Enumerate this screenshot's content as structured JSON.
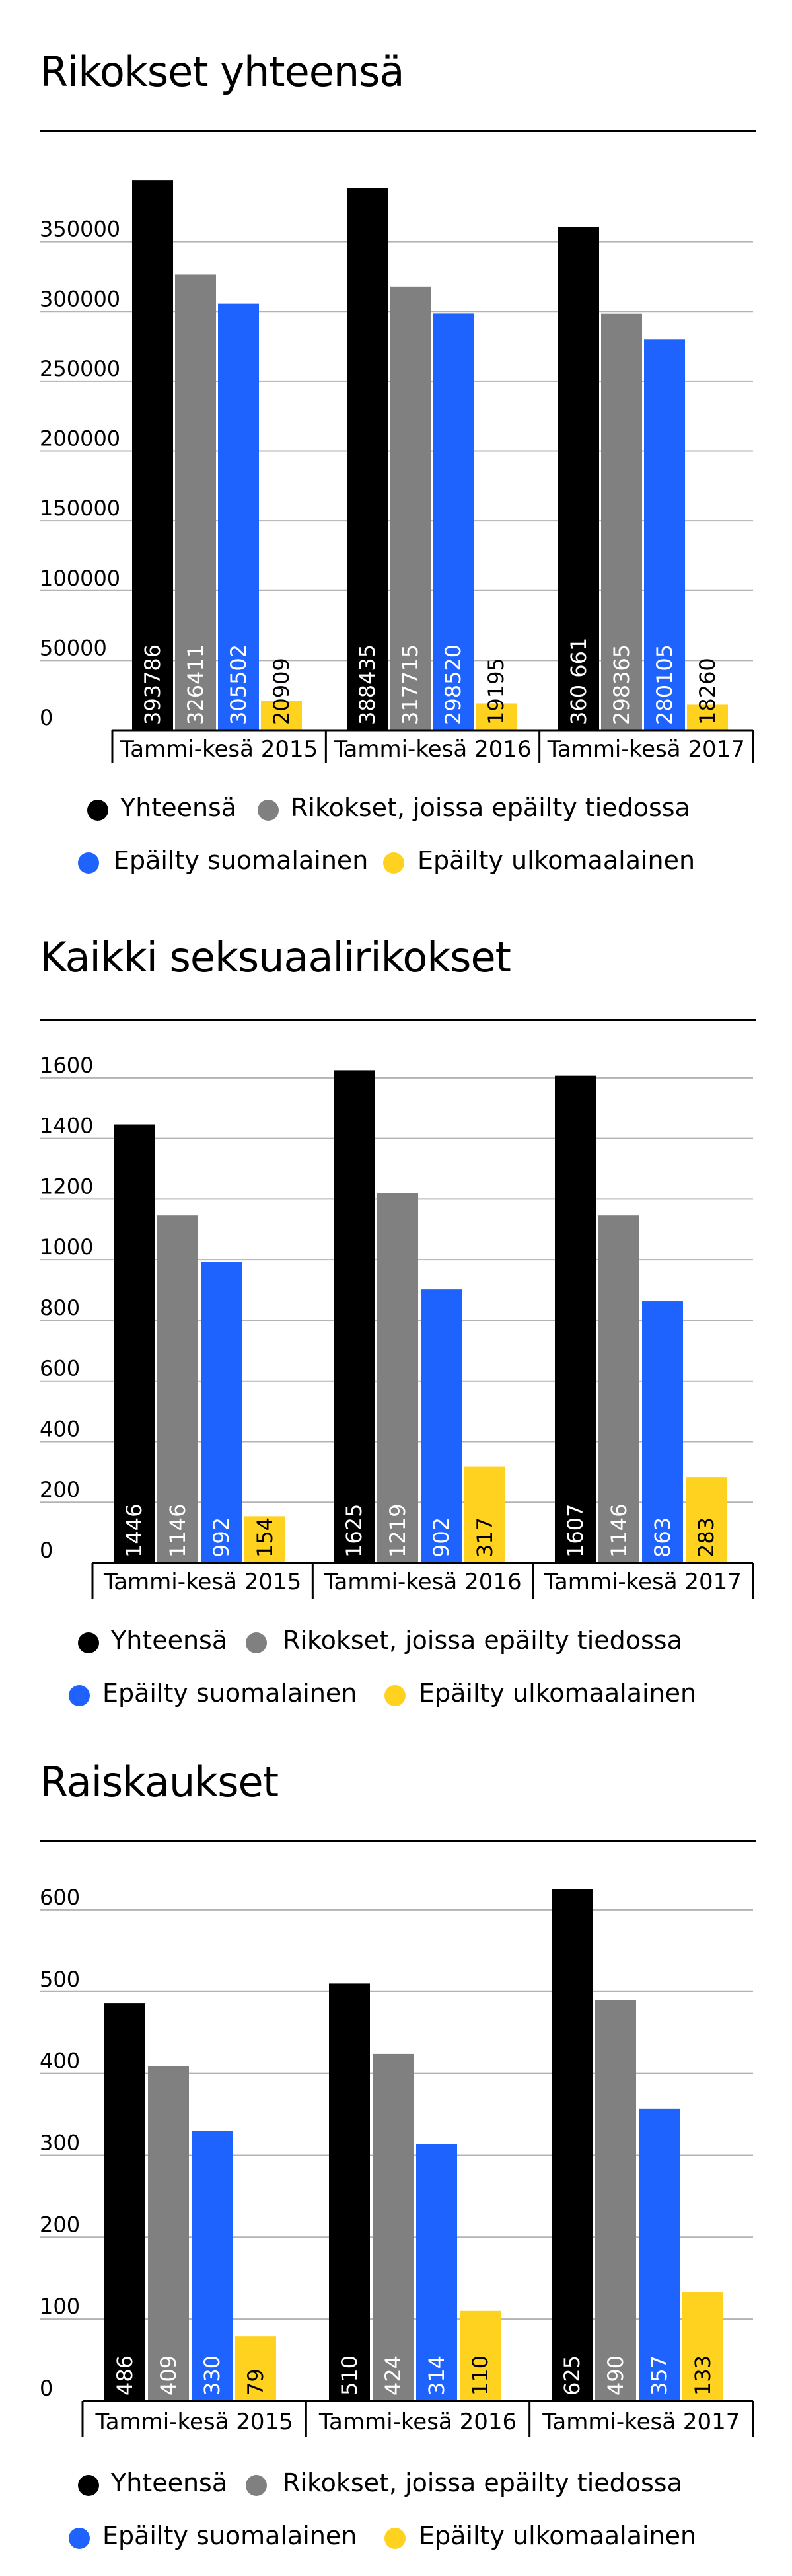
{
  "colors": {
    "total": "#000000",
    "known": "#808080",
    "finnish": "#1f63ff",
    "foreign": "#ffd21f",
    "grid": "#b3b3b3"
  },
  "legend": {
    "total": "Yhteensä",
    "known": "Rikokset, joissa epäilty tiedossa",
    "finnish": "Epäilty suomalainen",
    "foreign": "Epäilty ulkomaalainen"
  },
  "chart_data": [
    {
      "type": "bar",
      "title": "Rikokset yhteensä",
      "categories": [
        "Tammi-kesä 2015",
        "Tammi-kesä 2016",
        "Tammi-kesä 2017"
      ],
      "yticks": [
        "0",
        "50000",
        "100000",
        "150000",
        "200000",
        "250000",
        "300000",
        "350000"
      ],
      "ylim": [
        0,
        400000
      ],
      "grid": true,
      "legend_position": "bottom",
      "series": [
        {
          "name": "Yhteensä",
          "values": [
            393786,
            388435,
            360661
          ],
          "labels": [
            "393786",
            "388435",
            "360 661"
          ]
        },
        {
          "name": "Rikokset, joissa epäilty tiedossa",
          "values": [
            326411,
            317715,
            298365
          ],
          "labels": [
            "326411",
            "317715",
            "298365"
          ]
        },
        {
          "name": "Epäilty suomalainen",
          "values": [
            305502,
            298520,
            280105
          ],
          "labels": [
            "305502",
            "298520",
            "280105"
          ]
        },
        {
          "name": "Epäilty ulkomaalainen",
          "values": [
            20909,
            19195,
            18260
          ],
          "labels": [
            "20909",
            "19195",
            "18260"
          ]
        }
      ]
    },
    {
      "type": "bar",
      "title": "Kaikki seksuaalirikokset",
      "categories": [
        "Tammi-kesä 2015",
        "Tammi-kesä 2016",
        "Tammi-kesä 2017"
      ],
      "yticks": [
        "0",
        "200",
        "400",
        "600",
        "800",
        "1000",
        "1200",
        "1400",
        "1600"
      ],
      "ylim": [
        0,
        1700
      ],
      "grid": true,
      "legend_position": "bottom",
      "series": [
        {
          "name": "Yhteensä",
          "values": [
            1446,
            1625,
            1607
          ],
          "labels": [
            "1446",
            "1625",
            "1607"
          ]
        },
        {
          "name": "Rikokset, joissa epäilty tiedossa",
          "values": [
            1146,
            1219,
            1146
          ],
          "labels": [
            "1146",
            "1219",
            "1146"
          ]
        },
        {
          "name": "Epäilty suomalainen",
          "values": [
            992,
            902,
            863
          ],
          "labels": [
            "992",
            "902",
            "863"
          ]
        },
        {
          "name": "Epäilty ulkomaalainen",
          "values": [
            154,
            317,
            283
          ],
          "labels": [
            "154",
            "317",
            "283"
          ]
        }
      ]
    },
    {
      "type": "bar",
      "title": "Raiskaukset",
      "categories": [
        "Tammi-kesä 2015",
        "Tammi-kesä 2016",
        "Tammi-kesä 2017"
      ],
      "yticks": [
        "0",
        "100",
        "200",
        "300",
        "400",
        "500",
        "600"
      ],
      "ylim": [
        0,
        650
      ],
      "grid": true,
      "legend_position": "bottom",
      "series": [
        {
          "name": "Yhteensä",
          "values": [
            486,
            510,
            625
          ],
          "labels": [
            "486",
            "510",
            "625"
          ]
        },
        {
          "name": "Rikokset, joissa epäilty tiedossa",
          "values": [
            409,
            424,
            490
          ],
          "labels": [
            "409",
            "424",
            "490"
          ]
        },
        {
          "name": "Epäilty suomalainen",
          "values": [
            330,
            314,
            357
          ],
          "labels": [
            "330",
            "314",
            "357"
          ]
        },
        {
          "name": "Epäilty ulkomaalainen",
          "values": [
            79,
            110,
            133
          ],
          "labels": [
            "79",
            "110",
            "133"
          ]
        }
      ]
    }
  ]
}
